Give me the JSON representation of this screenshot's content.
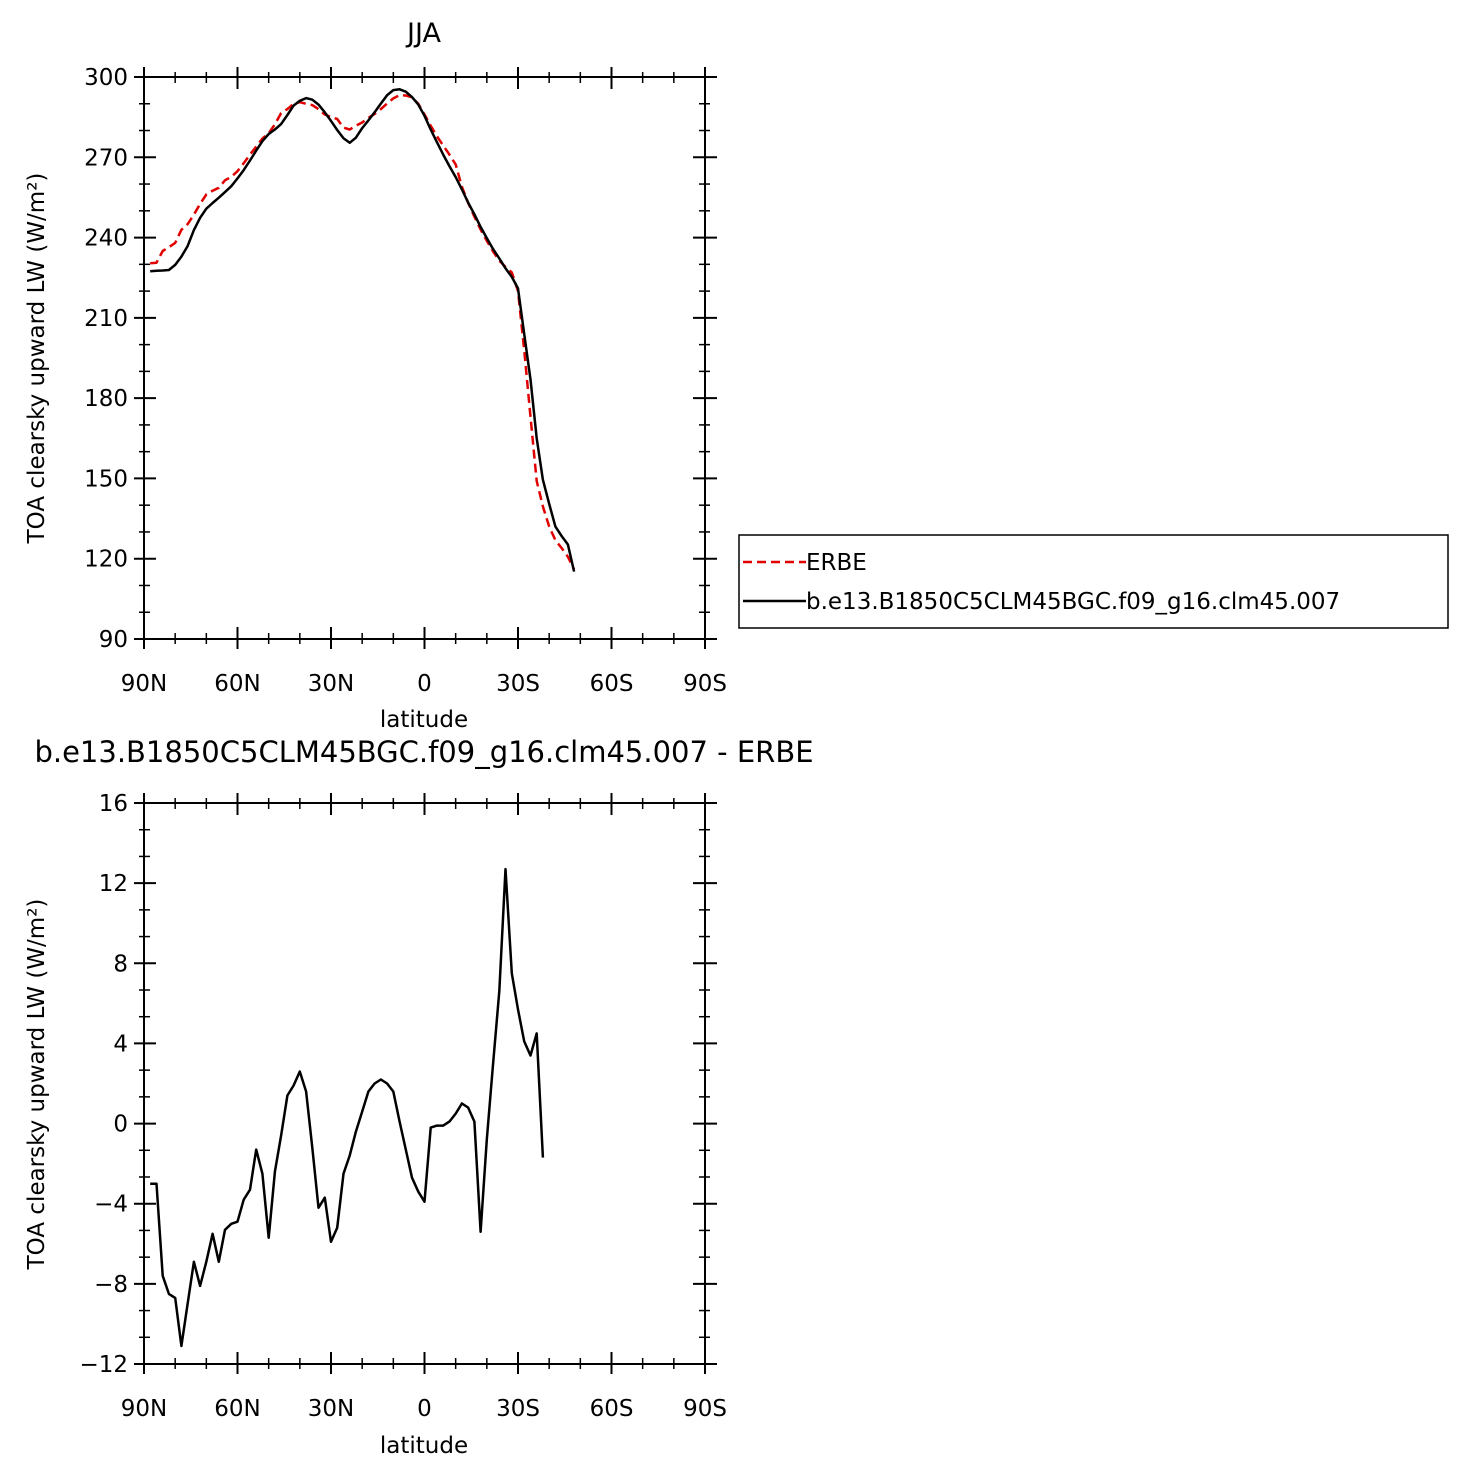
{
  "chart_data": [
    {
      "type": "line",
      "title": "JJA",
      "xlabel": "latitude",
      "ylabel": "TOA clearsky upward LW (W/m²)",
      "xlim": [
        90,
        -90
      ],
      "ylim": [
        90,
        300
      ],
      "x_ticks": [
        {
          "value": 90,
          "label": "90N"
        },
        {
          "value": 60,
          "label": "60N"
        },
        {
          "value": 30,
          "label": "30N"
        },
        {
          "value": 0,
          "label": "0"
        },
        {
          "value": -30,
          "label": "30S"
        },
        {
          "value": -60,
          "label": "60S"
        },
        {
          "value": -90,
          "label": "90S"
        }
      ],
      "y_ticks": [
        90,
        120,
        150,
        180,
        210,
        240,
        270,
        300
      ],
      "legend": {
        "placement": "right",
        "entries": [
          "ERBE",
          "b.e13.B1850C5CLM45BGC.f09_g16.clm45.007"
        ]
      },
      "series": [
        {
          "name": "ERBE",
          "color": "#e00000",
          "dash": true,
          "points": [
            [
              88,
              230.4
            ],
            [
              86,
              230.6
            ],
            [
              84,
              235.0
            ],
            [
              82,
              236.4
            ],
            [
              80,
              238.0
            ],
            [
              78,
              242.9
            ],
            [
              76,
              245.0
            ],
            [
              74,
              248.6
            ],
            [
              72,
              252.6
            ],
            [
              70,
              256.1
            ],
            [
              68,
              257.5
            ],
            [
              66,
              258.6
            ],
            [
              64,
              261.4
            ],
            [
              62,
              262.7
            ],
            [
              60,
              264.8
            ],
            [
              58,
              267.8
            ],
            [
              56,
              271.0
            ],
            [
              54,
              274.0
            ],
            [
              52,
              277.0
            ],
            [
              50,
              279.0
            ],
            [
              48,
              282.3
            ],
            [
              46,
              286.5
            ],
            [
              44,
              288.0
            ],
            [
              42,
              290.0
            ],
            [
              40,
              290.6
            ],
            [
              38,
              290.0
            ],
            [
              36,
              289.5
            ],
            [
              34,
              288.0
            ],
            [
              32,
              286.0
            ],
            [
              30,
              285.0
            ],
            [
              28,
              284.3
            ],
            [
              26,
              281.1
            ],
            [
              24,
              280.4
            ],
            [
              22,
              281.8
            ],
            [
              20,
              283.0
            ],
            [
              18,
              284.7
            ],
            [
              16,
              286.2
            ],
            [
              14,
              288.0
            ],
            [
              12,
              290.1
            ],
            [
              10,
              292.0
            ],
            [
              8,
              293.2
            ],
            [
              6,
              293.1
            ],
            [
              4,
              292.4
            ],
            [
              2,
              290.0
            ],
            [
              0,
              286.0
            ],
            [
              -2,
              281.8
            ],
            [
              -4,
              277.8
            ],
            [
              -6,
              274.4
            ],
            [
              -8,
              271.0
            ],
            [
              -10,
              267.3
            ],
            [
              -12,
              259.0
            ],
            [
              -14,
              253.0
            ],
            [
              -16,
              247.8
            ],
            [
              -18,
              243.0
            ],
            [
              -20,
              238.8
            ],
            [
              -22,
              234.8
            ],
            [
              -24,
              231.4
            ],
            [
              -26,
              229.0
            ],
            [
              -28,
              227.0
            ],
            [
              -30,
              220.0
            ],
            [
              -32,
              198.0
            ],
            [
              -34,
              173.0
            ],
            [
              -36,
              149.0
            ],
            [
              -38,
              139.5
            ],
            [
              -40,
              132.0
            ],
            [
              -42,
              126.9
            ],
            [
              -44,
              124.0
            ],
            [
              -46,
              120.7
            ],
            [
              -48,
              116.0
            ]
          ]
        },
        {
          "name": "b.e13.B1850C5CLM45BGC.f09_g16.clm45.007",
          "color": "#000000",
          "dash": false,
          "points": [
            [
              88,
              227.4
            ],
            [
              86,
              227.6
            ],
            [
              84,
              227.7
            ],
            [
              82,
              227.9
            ],
            [
              80,
              229.8
            ],
            [
              78,
              232.9
            ],
            [
              76,
              236.8
            ],
            [
              74,
              242.8
            ],
            [
              72,
              247.4
            ],
            [
              70,
              250.8
            ],
            [
              68,
              252.9
            ],
            [
              66,
              254.9
            ],
            [
              64,
              257.0
            ],
            [
              62,
              259.2
            ],
            [
              60,
              262.1
            ],
            [
              58,
              265.2
            ],
            [
              56,
              268.8
            ],
            [
              54,
              272.5
            ],
            [
              52,
              276.0
            ],
            [
              50,
              278.7
            ],
            [
              48,
              280.4
            ],
            [
              46,
              282.4
            ],
            [
              44,
              285.8
            ],
            [
              42,
              289.3
            ],
            [
              40,
              291.1
            ],
            [
              38,
              292.1
            ],
            [
              36,
              291.5
            ],
            [
              34,
              289.7
            ],
            [
              32,
              286.8
            ],
            [
              30,
              283.6
            ],
            [
              28,
              280.2
            ],
            [
              26,
              277.1
            ],
            [
              24,
              275.4
            ],
            [
              22,
              277.3
            ],
            [
              20,
              280.9
            ],
            [
              18,
              283.8
            ],
            [
              16,
              286.8
            ],
            [
              14,
              290.1
            ],
            [
              12,
              293.2
            ],
            [
              10,
              295.1
            ],
            [
              8,
              295.4
            ],
            [
              6,
              294.5
            ],
            [
              4,
              292.5
            ],
            [
              2,
              289.7
            ],
            [
              0,
              285.5
            ],
            [
              -2,
              280.4
            ],
            [
              -4,
              275.6
            ],
            [
              -6,
              271.0
            ],
            [
              -8,
              266.7
            ],
            [
              -10,
              262.6
            ],
            [
              -12,
              258.0
            ],
            [
              -14,
              253.1
            ],
            [
              -16,
              248.7
            ],
            [
              -18,
              244.0
            ],
            [
              -20,
              239.8
            ],
            [
              -22,
              235.7
            ],
            [
              -24,
              232.2
            ],
            [
              -26,
              228.5
            ],
            [
              -28,
              225.3
            ],
            [
              -30,
              221.0
            ],
            [
              -32,
              204.0
            ],
            [
              -34,
              187.0
            ],
            [
              -36,
              165.0
            ],
            [
              -38,
              149.5
            ],
            [
              -40,
              140.5
            ],
            [
              -42,
              132.0
            ],
            [
              -44,
              128.5
            ],
            [
              -46,
              125.3
            ],
            [
              -48,
              115.2
            ]
          ]
        }
      ]
    },
    {
      "type": "line",
      "title": "b.e13.B1850C5CLM45BGC.f09_g16.clm45.007 - ERBE",
      "xlabel": "latitude",
      "ylabel": "TOA clearsky upward LW (W/m²)",
      "xlim": [
        90,
        -90
      ],
      "ylim": [
        -12,
        16
      ],
      "x_ticks": [
        {
          "value": 90,
          "label": "90N"
        },
        {
          "value": 60,
          "label": "60N"
        },
        {
          "value": 30,
          "label": "30N"
        },
        {
          "value": 0,
          "label": "0"
        },
        {
          "value": -30,
          "label": "30S"
        },
        {
          "value": -60,
          "label": "60S"
        },
        {
          "value": -90,
          "label": "90S"
        }
      ],
      "y_ticks": [
        -12,
        -8,
        -4,
        0,
        4,
        8,
        12,
        16
      ],
      "series": [
        {
          "color": "#000000",
          "dash": false,
          "points": [
            [
              88,
              -3.0
            ],
            [
              86,
              -3.0
            ],
            [
              84,
              -7.6
            ],
            [
              82,
              -8.5
            ],
            [
              80,
              -8.7
            ],
            [
              78,
              -11.1
            ],
            [
              76,
              -9.0
            ],
            [
              74,
              -6.9
            ],
            [
              72,
              -8.1
            ],
            [
              70,
              -6.9
            ],
            [
              68,
              -5.5
            ],
            [
              66,
              -6.9
            ],
            [
              64,
              -5.3
            ],
            [
              62,
              -5.0
            ],
            [
              60,
              -4.9
            ],
            [
              58,
              -3.8
            ],
            [
              56,
              -3.3
            ],
            [
              54,
              -1.3
            ],
            [
              52,
              -2.5
            ],
            [
              50,
              -5.7
            ],
            [
              48,
              -2.4
            ],
            [
              46,
              -0.6
            ],
            [
              44,
              1.4
            ],
            [
              42,
              1.9
            ],
            [
              40,
              2.6
            ],
            [
              38,
              1.6
            ],
            [
              36,
              -1.2
            ],
            [
              34,
              -4.2
            ],
            [
              32,
              -3.7
            ],
            [
              30,
              -5.9
            ],
            [
              28,
              -5.2
            ],
            [
              26,
              -2.5
            ],
            [
              24,
              -1.6
            ],
            [
              22,
              -0.4
            ],
            [
              20,
              0.6
            ],
            [
              18,
              1.6
            ],
            [
              16,
              2.0
            ],
            [
              14,
              2.2
            ],
            [
              12,
              2.0
            ],
            [
              10,
              1.6
            ],
            [
              8,
              0.1
            ],
            [
              6,
              -1.3
            ],
            [
              4,
              -2.7
            ],
            [
              2,
              -3.4
            ],
            [
              0,
              -3.9
            ],
            [
              -2,
              -0.2
            ],
            [
              -4,
              -0.1
            ],
            [
              -6,
              -0.1
            ],
            [
              -8,
              0.1
            ],
            [
              -10,
              0.5
            ],
            [
              -12,
              1.0
            ],
            [
              -14,
              0.8
            ],
            [
              -16,
              0.1
            ],
            [
              -18,
              -5.4
            ],
            [
              -20,
              -0.8
            ],
            [
              -22,
              3.0
            ],
            [
              -24,
              6.6
            ],
            [
              -26,
              12.7
            ],
            [
              -28,
              7.5
            ],
            [
              -30,
              5.7
            ],
            [
              -32,
              4.1
            ],
            [
              -34,
              3.4
            ],
            [
              -36,
              4.5
            ],
            [
              -38,
              -1.7
            ]
          ]
        }
      ]
    }
  ]
}
